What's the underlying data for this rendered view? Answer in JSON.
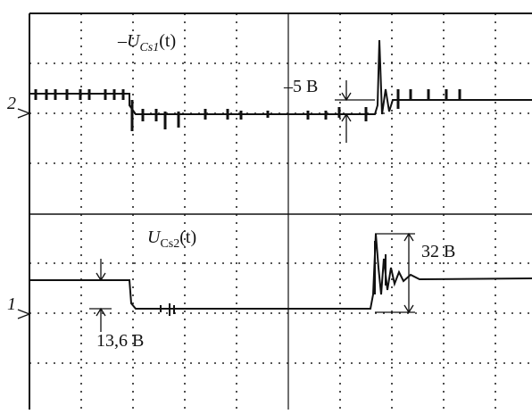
{
  "channels": [
    {
      "marker": "2",
      "label": {
        "sign": "–",
        "symbol": "U",
        "subscript": "Cs1",
        "arg": "(t)"
      },
      "annotation": "–5 B"
    },
    {
      "marker": "1",
      "label": {
        "symbol": "U",
        "subscript": "Cs2",
        "arg": "(t)"
      },
      "annotations": [
        "32 B",
        "13,6 B"
      ]
    }
  ]
}
